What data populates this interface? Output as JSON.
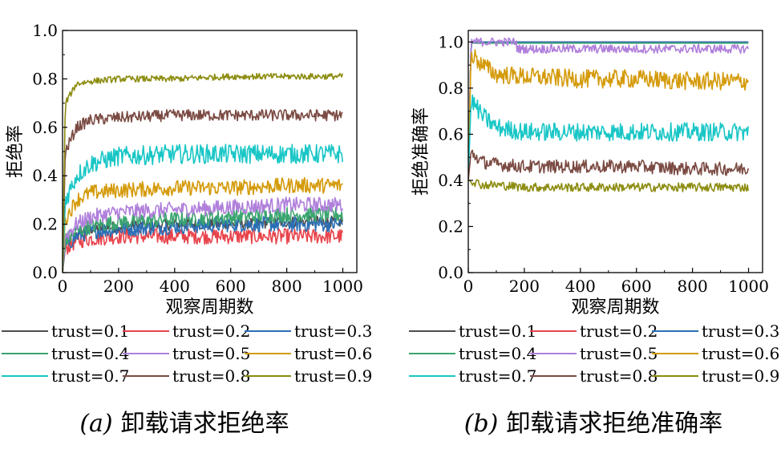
{
  "legend_labels": [
    "trust=0.1",
    "trust=0.2",
    "trust=0.3",
    "trust=0.4",
    "trust=0.5",
    "trust=0.6",
    "trust=0.7",
    "trust=0.8",
    "trust=0.9"
  ],
  "colors": [
    "#4d4d4d",
    "#e8434b",
    "#2a6fb6",
    "#3aa56f",
    "#b07fdb",
    "#d49a0a",
    "#19c6c6",
    "#7a4a42",
    "#8c8c10"
  ],
  "chart_data": [
    {
      "type": "line",
      "caption_prefix": "(a)",
      "caption_text": "卸载请求拒绝率",
      "title": "",
      "xlabel": "观察周期数",
      "ylabel": "拒绝率",
      "xlim": [
        0,
        1050
      ],
      "ylim": [
        0,
        1.0
      ],
      "x_ticks": [
        0,
        200,
        400,
        600,
        800,
        1000
      ],
      "y_ticks": [
        0.0,
        0.2,
        0.4,
        0.6,
        0.8,
        1.0
      ],
      "x_tick_labels": [
        "0",
        "200",
        "400",
        "600",
        "800",
        "1000"
      ],
      "y_tick_labels": [
        "0.0",
        "0.2",
        "0.4",
        "0.6",
        "0.8",
        "1.0"
      ],
      "legend": "bottom",
      "series": [
        {
          "name": "trust=0.1",
          "x": [
            0,
            10,
            50,
            100,
            200,
            400,
            600,
            800,
            1000
          ],
          "y": [
            0,
            0.12,
            0.16,
            0.18,
            0.19,
            0.2,
            0.2,
            0.21,
            0.21
          ],
          "noise": 0.015
        },
        {
          "name": "trust=0.2",
          "x": [
            0,
            10,
            50,
            100,
            200,
            400,
            600,
            800,
            1000
          ],
          "y": [
            0,
            0.1,
            0.13,
            0.14,
            0.15,
            0.15,
            0.15,
            0.15,
            0.15
          ],
          "noise": 0.02
        },
        {
          "name": "trust=0.3",
          "x": [
            0,
            10,
            50,
            100,
            200,
            400,
            600,
            800,
            1000
          ],
          "y": [
            0,
            0.11,
            0.15,
            0.17,
            0.18,
            0.19,
            0.2,
            0.2,
            0.2
          ],
          "noise": 0.02
        },
        {
          "name": "trust=0.4",
          "x": [
            0,
            10,
            50,
            100,
            200,
            400,
            600,
            800,
            1000
          ],
          "y": [
            0,
            0.13,
            0.17,
            0.19,
            0.21,
            0.22,
            0.23,
            0.24,
            0.24
          ],
          "noise": 0.02
        },
        {
          "name": "trust=0.5",
          "x": [
            0,
            10,
            50,
            100,
            200,
            400,
            600,
            800,
            1000
          ],
          "y": [
            0,
            0.15,
            0.2,
            0.23,
            0.25,
            0.26,
            0.27,
            0.28,
            0.28
          ],
          "noise": 0.02
        },
        {
          "name": "trust=0.6",
          "x": [
            0,
            10,
            50,
            100,
            200,
            400,
            600,
            800,
            1000
          ],
          "y": [
            0,
            0.22,
            0.3,
            0.33,
            0.34,
            0.35,
            0.35,
            0.36,
            0.36
          ],
          "noise": 0.02
        },
        {
          "name": "trust=0.7",
          "x": [
            0,
            10,
            50,
            100,
            200,
            400,
            600,
            800,
            1000
          ],
          "y": [
            0,
            0.3,
            0.4,
            0.45,
            0.48,
            0.49,
            0.49,
            0.49,
            0.49
          ],
          "noise": 0.025
        },
        {
          "name": "trust=0.8",
          "x": [
            0,
            10,
            50,
            100,
            200,
            400,
            600,
            800,
            1000
          ],
          "y": [
            0,
            0.5,
            0.6,
            0.63,
            0.64,
            0.65,
            0.65,
            0.65,
            0.65
          ],
          "noise": 0.015
        },
        {
          "name": "trust=0.9",
          "x": [
            0,
            10,
            50,
            100,
            200,
            400,
            600,
            800,
            1000
          ],
          "y": [
            0,
            0.7,
            0.78,
            0.79,
            0.8,
            0.8,
            0.81,
            0.81,
            0.81
          ],
          "noise": 0.008
        }
      ]
    },
    {
      "type": "line",
      "caption_prefix": "(b)",
      "caption_text": "卸载请求拒绝准确率",
      "title": "",
      "xlabel": "观察周期数",
      "ylabel": "拒绝准确率",
      "xlim": [
        0,
        1050
      ],
      "ylim": [
        0,
        1.05
      ],
      "x_ticks": [
        0,
        200,
        400,
        600,
        800,
        1000
      ],
      "y_ticks": [
        0.0,
        0.2,
        0.4,
        0.6,
        0.8,
        1.0
      ],
      "x_tick_labels": [
        "0",
        "200",
        "400",
        "600",
        "800",
        "1000"
      ],
      "y_tick_labels": [
        "0.0",
        "0.2",
        "0.4",
        "0.6",
        "0.8",
        "1.0"
      ],
      "legend": "bottom",
      "series": [
        {
          "name": "trust=0.1",
          "x": [
            0,
            10,
            1000
          ],
          "y": [
            0.4,
            1.0,
            1.0
          ],
          "noise": 0
        },
        {
          "name": "trust=0.2",
          "x": [
            0,
            10,
            1000
          ],
          "y": [
            0.4,
            1.0,
            1.0
          ],
          "noise": 0
        },
        {
          "name": "trust=0.3",
          "x": [
            0,
            10,
            1000
          ],
          "y": [
            0.4,
            1.0,
            1.0
          ],
          "noise": 0
        },
        {
          "name": "trust=0.4",
          "x": [
            0,
            10,
            1000
          ],
          "y": [
            0.4,
            0.995,
            0.995
          ],
          "noise": 0
        },
        {
          "name": "trust=0.5",
          "x": [
            0,
            10,
            170,
            175,
            400,
            600,
            800,
            1000
          ],
          "y": [
            0.4,
            1.0,
            1.0,
            0.97,
            0.97,
            0.97,
            0.97,
            0.97
          ],
          "noise": 0.012
        },
        {
          "name": "trust=0.6",
          "x": [
            0,
            10,
            50,
            100,
            200,
            400,
            600,
            800,
            1000
          ],
          "y": [
            0.4,
            0.95,
            0.9,
            0.86,
            0.85,
            0.84,
            0.84,
            0.83,
            0.83
          ],
          "noise": 0.025
        },
        {
          "name": "trust=0.7",
          "x": [
            0,
            10,
            50,
            100,
            200,
            400,
            600,
            800,
            1000
          ],
          "y": [
            0.4,
            0.75,
            0.68,
            0.63,
            0.61,
            0.61,
            0.61,
            0.61,
            0.61
          ],
          "noise": 0.025
        },
        {
          "name": "trust=0.8",
          "x": [
            0,
            10,
            50,
            100,
            200,
            400,
            600,
            800,
            1000
          ],
          "y": [
            0.4,
            0.52,
            0.48,
            0.47,
            0.46,
            0.46,
            0.46,
            0.45,
            0.45
          ],
          "noise": 0.018
        },
        {
          "name": "trust=0.9",
          "x": [
            0,
            10,
            50,
            100,
            200,
            400,
            600,
            800,
            1000
          ],
          "y": [
            0.4,
            0.4,
            0.38,
            0.38,
            0.37,
            0.37,
            0.37,
            0.37,
            0.37
          ],
          "noise": 0.012
        }
      ]
    }
  ]
}
